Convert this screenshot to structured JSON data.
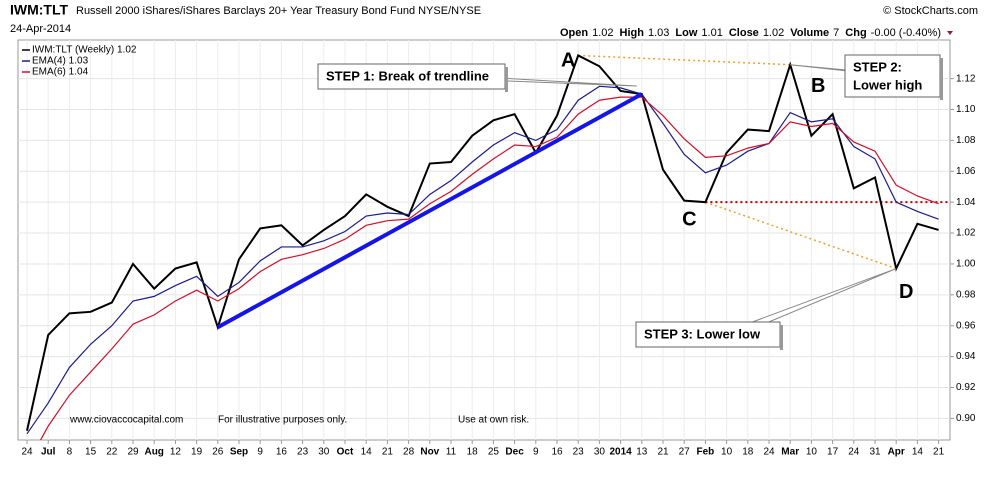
{
  "chart_data": {
    "type": "line",
    "symbol": "IWM:TLT",
    "title": "Russell 2000 iShares/iShares Barclays 20+ Year Treasury Bond Fund NYSE/NYSE",
    "date": "24-Apr-2014",
    "quote": [
      {
        "label": "Open",
        "value": "1.02"
      },
      {
        "label": "High",
        "value": "1.03"
      },
      {
        "label": "Low",
        "value": "1.01"
      },
      {
        "label": "Close",
        "value": "1.02"
      },
      {
        "label": "Volume",
        "value": "7"
      },
      {
        "label": "Chg",
        "value": "-0.00 (-0.40%)"
      }
    ],
    "credit": "© StockCharts.com",
    "categories": [
      "24",
      "Jul",
      "8",
      "15",
      "22",
      "29",
      "Aug",
      "12",
      "19",
      "26",
      "Sep",
      "9",
      "16",
      "23",
      "30",
      "Oct",
      "14",
      "21",
      "28",
      "Nov",
      "11",
      "18",
      "25",
      "Dec",
      "9",
      "16",
      "23",
      "30",
      "2014",
      "13",
      "21",
      "27",
      "Feb",
      "10",
      "18",
      "24",
      "Mar",
      "10",
      "17",
      "24",
      "31",
      "Apr",
      "14",
      "21"
    ],
    "series": [
      {
        "name": "IWM:TLT (Weekly) 1.02",
        "color": "#000000",
        "values": [
          0.892,
          0.954,
          0.968,
          0.969,
          0.975,
          1.0,
          0.984,
          0.997,
          1.001,
          0.959,
          1.003,
          1.023,
          1.025,
          1.012,
          1.022,
          1.031,
          1.045,
          1.037,
          1.031,
          1.065,
          1.066,
          1.083,
          1.093,
          1.097,
          1.072,
          1.096,
          1.135,
          1.128,
          1.112,
          1.11,
          1.061,
          1.041,
          1.04,
          1.072,
          1.087,
          1.086,
          1.129,
          1.083,
          1.097,
          1.049,
          1.056,
          0.997,
          1.026,
          1.022
        ]
      },
      {
        "name": "EMA(4) 1.03",
        "color": "#1c1c8c",
        "values": [
          0.89,
          0.91,
          0.933,
          0.948,
          0.96,
          0.976,
          0.979,
          0.986,
          0.992,
          0.979,
          0.988,
          1.002,
          1.011,
          1.011,
          1.015,
          1.021,
          1.031,
          1.033,
          1.032,
          1.045,
          1.054,
          1.066,
          1.077,
          1.085,
          1.08,
          1.087,
          1.106,
          1.115,
          1.114,
          1.11,
          1.091,
          1.071,
          1.059,
          1.064,
          1.073,
          1.078,
          1.098,
          1.092,
          1.094,
          1.076,
          1.068,
          1.04,
          1.034,
          1.029
        ]
      },
      {
        "name": "EMA(6) 1.04",
        "color": "#d0102a",
        "values": [
          0.87,
          0.895,
          0.915,
          0.93,
          0.945,
          0.961,
          0.967,
          0.976,
          0.983,
          0.976,
          0.984,
          0.995,
          1.003,
          1.006,
          1.01,
          1.016,
          1.025,
          1.028,
          1.029,
          1.039,
          1.047,
          1.058,
          1.068,
          1.077,
          1.076,
          1.082,
          1.097,
          1.106,
          1.108,
          1.108,
          1.096,
          1.081,
          1.069,
          1.07,
          1.075,
          1.078,
          1.092,
          1.089,
          1.091,
          1.079,
          1.073,
          1.051,
          1.044,
          1.039
        ]
      }
    ],
    "ylim": [
      0.886,
      1.145
    ],
    "yticks": [
      {
        "value": 0.9,
        "label": "0.90"
      },
      0.92,
      0.94,
      0.96,
      0.98,
      {
        "value": 1,
        "label": "1.00"
      },
      1.02,
      1.04,
      1.06,
      1.08,
      {
        "value": 1.1,
        "label": "1.10"
      },
      1.12
    ],
    "grid": true,
    "legend": "upper left",
    "annotations": {
      "step1": "STEP 1: Break of trendline",
      "step2": [
        "STEP 2:",
        "Lower high"
      ],
      "step3": "STEP 3:  Lower low",
      "points": [
        "A",
        "B",
        "C",
        "D"
      ],
      "footer": [
        "www.ciovaccocapital.com",
        "For illustrative purposes only.",
        "Use at own risk."
      ]
    }
  }
}
